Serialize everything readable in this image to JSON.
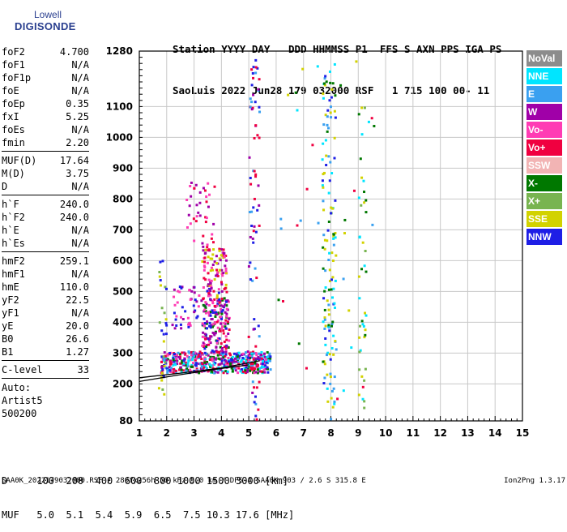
{
  "logo": {
    "line1": "Lowell",
    "line2": "DIGISONDE"
  },
  "header": {
    "line1": "Station YYYY DAY   DDD HHMMSS P1  FFS S AXN PPS IGA PS",
    "line2": "SaoLuis 2022 Jun28 179 032000 RSF   1 715 100 00- 11"
  },
  "params": {
    "group1": [
      {
        "name": "foF2",
        "value": "4.700"
      },
      {
        "name": "foF1",
        "value": "N/A"
      },
      {
        "name": "foF1p",
        "value": "N/A"
      },
      {
        "name": "foE",
        "value": "N/A"
      },
      {
        "name": "foEp",
        "value": "0.35"
      },
      {
        "name": "fxI",
        "value": "5.25"
      },
      {
        "name": "foEs",
        "value": "N/A"
      },
      {
        "name": "fmin",
        "value": "2.20"
      }
    ],
    "group2": [
      {
        "name": "MUF(D)",
        "value": "17.64"
      },
      {
        "name": "M(D)",
        "value": "3.75"
      },
      {
        "name": "D",
        "value": "N/A"
      }
    ],
    "group3": [
      {
        "name": "h`F",
        "value": "240.0"
      },
      {
        "name": "h`F2",
        "value": "240.0"
      },
      {
        "name": "h`E",
        "value": "N/A"
      },
      {
        "name": "h`Es",
        "value": "N/A"
      }
    ],
    "group4": [
      {
        "name": "hmF2",
        "value": "259.1"
      },
      {
        "name": "hmF1",
        "value": "N/A"
      },
      {
        "name": "hmE",
        "value": "110.0"
      },
      {
        "name": "yF2",
        "value": "22.5"
      },
      {
        "name": "yF1",
        "value": "N/A"
      },
      {
        "name": "yE",
        "value": "20.0"
      },
      {
        "name": "B0",
        "value": "26.6"
      },
      {
        "name": "B1",
        "value": "1.27"
      }
    ],
    "clevel": {
      "name": "C-level",
      "value": "33"
    },
    "auto": [
      "Auto:",
      "Artist5",
      "500200"
    ]
  },
  "legend": [
    {
      "label": "NoVal",
      "color": "#8c8c8c"
    },
    {
      "label": "NNE",
      "color": "#00e5ff"
    },
    {
      "label": "E",
      "color": "#3aa0f0"
    },
    {
      "label": "W",
      "color": "#a000a8"
    },
    {
      "label": "Vo-",
      "color": "#ff3cb4"
    },
    {
      "label": "Vo+",
      "color": "#f00040"
    },
    {
      "label": "SSW",
      "color": "#f2b4b4"
    },
    {
      "label": "X-",
      "color": "#007800"
    },
    {
      "label": "X+",
      "color": "#78b450"
    },
    {
      "label": "SSE",
      "color": "#d2d200"
    },
    {
      "label": "NNW",
      "color": "#1e1ee6"
    }
  ],
  "muf": {
    "line1": "D     100  200  400  600  800 1000 1500 3000 [km]",
    "line2": "MUF   5.0  5.1  5.4  5.9  6.5  7.5 10.3 17.6 [MHz]"
  },
  "footer": {
    "left": "SAA0K_2022179032000.RSF / 280fx256h 50 kHz 5.0 km / DPS-4 SAA0K 903 / 2.6 S 315.8 E",
    "right": "Ion2Png 1.3.17"
  },
  "chart_data": {
    "type": "scatter",
    "xlim": [
      1,
      15
    ],
    "ylim": [
      80,
      1280
    ],
    "x_ticks": [
      "1",
      "2",
      "3",
      "4",
      "5",
      "6",
      "7",
      "8",
      "9",
      "10",
      "11",
      "12",
      "13",
      "14",
      "15"
    ],
    "y_ticks": [
      "80",
      "200",
      "300",
      "400",
      "500",
      "600",
      "700",
      "800",
      "900",
      "1000",
      "1100",
      "1280"
    ],
    "grid": true,
    "trace_lines": [
      {
        "name": "",
        "points": [
          [
            1.0,
            220
          ],
          [
            2.5,
            235
          ],
          [
            4.0,
            252
          ],
          [
            5.4,
            275
          ]
        ]
      },
      {
        "name": "",
        "points": [
          [
            1.0,
            208
          ],
          [
            2.5,
            230
          ],
          [
            4.0,
            250
          ],
          [
            5.0,
            262
          ]
        ]
      }
    ],
    "clusters": [
      {
        "x": [
          1.8,
          5.8
        ],
        "y": [
          235,
          305
        ],
        "count": 520,
        "colors": [
          "#ff3cb4",
          "#f00040",
          "#1e1ee6",
          "#a000a8",
          "#007800",
          "#3aa0f0",
          "#00e5ff"
        ]
      },
      {
        "x": [
          3.3,
          4.3
        ],
        "y": [
          300,
          480
        ],
        "count": 170,
        "colors": [
          "#a000a8",
          "#007800",
          "#ff3cb4",
          "#f00040",
          "#1e1ee6"
        ]
      },
      {
        "x": [
          2.2,
          4.0
        ],
        "y": [
          380,
          520
        ],
        "count": 80,
        "colors": [
          "#a000a8",
          "#1e1ee6",
          "#ff3cb4"
        ]
      },
      {
        "x": [
          3.3,
          4.2
        ],
        "y": [
          480,
          640
        ],
        "count": 90,
        "colors": [
          "#a000a8",
          "#ff3cb4",
          "#f00040",
          "#d2d200"
        ]
      },
      {
        "x": [
          2.7,
          3.8
        ],
        "y": [
          640,
          860
        ],
        "count": 40,
        "colors": [
          "#a000a8",
          "#f00040",
          "#ff3cb4"
        ]
      },
      {
        "x": [
          5.0,
          5.4
        ],
        "y": [
          80,
          1260
        ],
        "count": 80,
        "colors": [
          "#1e1ee6",
          "#a000a8",
          "#f00040",
          "#3aa0f0"
        ]
      },
      {
        "x": [
          7.7,
          8.2
        ],
        "y": [
          80,
          1240
        ],
        "count": 130,
        "colors": [
          "#00e5ff",
          "#3aa0f0",
          "#007800",
          "#1e1ee6",
          "#d2d200"
        ]
      },
      {
        "x": [
          9.0,
          9.3
        ],
        "y": [
          120,
          1100
        ],
        "count": 40,
        "colors": [
          "#d2d200",
          "#78b450",
          "#007800",
          "#00e5ff"
        ]
      },
      {
        "x": [
          1.7,
          2.0
        ],
        "y": [
          100,
          600
        ],
        "count": 30,
        "colors": [
          "#d2d200",
          "#78b450",
          "#1e1ee6"
        ]
      },
      {
        "x": [
          6.0,
          9.6
        ],
        "y": [
          120,
          1250
        ],
        "count": 40,
        "colors": [
          "#00e5ff",
          "#d2d200",
          "#3aa0f0",
          "#007800",
          "#f00040"
        ]
      }
    ]
  }
}
